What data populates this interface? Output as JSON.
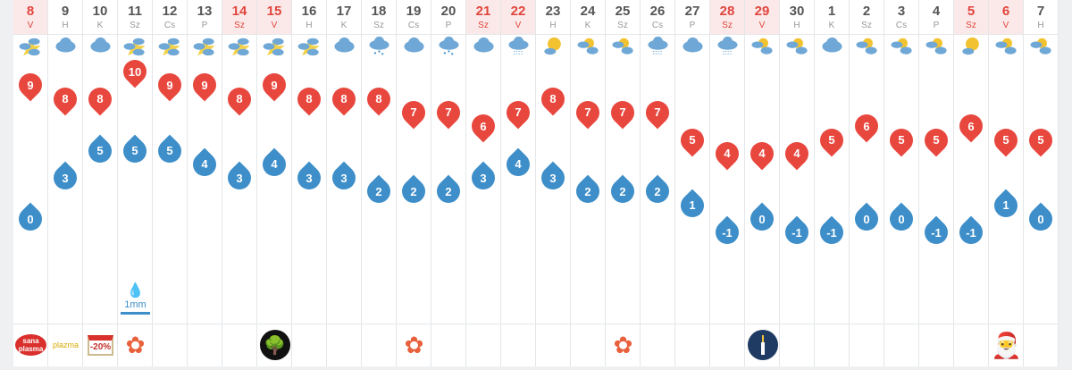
{
  "days": [
    {
      "d": "8",
      "w": "V",
      "we": true,
      "icon": "partly-cloudy",
      "max": 9,
      "min": 0
    },
    {
      "d": "9",
      "w": "H",
      "we": false,
      "icon": "cloudy",
      "max": 8,
      "min": 3
    },
    {
      "d": "10",
      "w": "K",
      "we": false,
      "icon": "cloudy",
      "max": 8,
      "min": 5
    },
    {
      "d": "11",
      "w": "Sz",
      "we": false,
      "icon": "partly-cloudy",
      "max": 10,
      "min": 5,
      "precip": "1mm"
    },
    {
      "d": "12",
      "w": "Cs",
      "we": false,
      "icon": "partly-cloudy",
      "max": 9,
      "min": 5
    },
    {
      "d": "13",
      "w": "P",
      "we": false,
      "icon": "partly-cloudy",
      "max": 9,
      "min": 4
    },
    {
      "d": "14",
      "w": "Sz",
      "we": true,
      "icon": "partly-cloudy",
      "max": 8,
      "min": 3
    },
    {
      "d": "15",
      "w": "V",
      "we": true,
      "icon": "partly-cloudy",
      "max": 9,
      "min": 4
    },
    {
      "d": "16",
      "w": "H",
      "we": false,
      "icon": "partly-cloudy",
      "max": 8,
      "min": 3
    },
    {
      "d": "17",
      "w": "K",
      "we": false,
      "icon": "cloudy",
      "max": 8,
      "min": 3
    },
    {
      "d": "18",
      "w": "Sz",
      "we": false,
      "icon": "light-rain",
      "max": 8,
      "min": 2
    },
    {
      "d": "19",
      "w": "Cs",
      "we": false,
      "icon": "cloudy",
      "max": 7,
      "min": 2
    },
    {
      "d": "20",
      "w": "P",
      "we": false,
      "icon": "light-rain",
      "max": 7,
      "min": 2
    },
    {
      "d": "21",
      "w": "Sz",
      "we": true,
      "icon": "cloudy",
      "max": 6,
      "min": 3
    },
    {
      "d": "22",
      "w": "V",
      "we": true,
      "icon": "drizzle",
      "max": 7,
      "min": 4
    },
    {
      "d": "23",
      "w": "H",
      "we": false,
      "icon": "sunny-cloud",
      "max": 8,
      "min": 3
    },
    {
      "d": "24",
      "w": "K",
      "we": false,
      "icon": "sun-clouds",
      "max": 7,
      "min": 2
    },
    {
      "d": "25",
      "w": "Sz",
      "we": false,
      "icon": "sun-clouds",
      "max": 7,
      "min": 2
    },
    {
      "d": "26",
      "w": "Cs",
      "we": false,
      "icon": "drizzle",
      "max": 7,
      "min": 2
    },
    {
      "d": "27",
      "w": "P",
      "we": false,
      "icon": "cloudy",
      "max": 5,
      "min": 1
    },
    {
      "d": "28",
      "w": "Sz",
      "we": true,
      "icon": "drizzle",
      "max": 4,
      "min": -1
    },
    {
      "d": "29",
      "w": "V",
      "we": true,
      "icon": "sun-clouds",
      "max": 4,
      "min": 0
    },
    {
      "d": "30",
      "w": "H",
      "we": false,
      "icon": "sun-clouds",
      "max": 4,
      "min": -1
    },
    {
      "d": "1",
      "w": "K",
      "we": false,
      "icon": "cloudy",
      "max": 5,
      "min": -1
    },
    {
      "d": "2",
      "w": "Sz",
      "we": false,
      "icon": "sun-clouds",
      "max": 6,
      "min": 0
    },
    {
      "d": "3",
      "w": "Cs",
      "we": false,
      "icon": "sun-clouds",
      "max": 5,
      "min": 0
    },
    {
      "d": "4",
      "w": "P",
      "we": false,
      "icon": "sun-clouds",
      "max": 5,
      "min": -1
    },
    {
      "d": "5",
      "w": "Sz",
      "we": true,
      "icon": "sunny-cloud",
      "max": 6,
      "min": -1
    },
    {
      "d": "6",
      "w": "V",
      "we": true,
      "icon": "sun-clouds",
      "max": 5,
      "min": 1
    },
    {
      "d": "7",
      "w": "H",
      "we": false,
      "icon": "sun-clouds",
      "max": 5,
      "min": 0
    }
  ],
  "events": [
    {
      "col": 0,
      "type": "sana-plasma-logo",
      "text": "sana plasma"
    },
    {
      "col": 1,
      "type": "plasma-logo",
      "text": "plazma"
    },
    {
      "col": 2,
      "type": "discount-calendar",
      "text": "-20%"
    },
    {
      "col": 3,
      "type": "flower-ornament"
    },
    {
      "col": 7,
      "type": "tree-memorial"
    },
    {
      "col": 11,
      "type": "flower-ornament"
    },
    {
      "col": 17,
      "type": "flower-ornament"
    },
    {
      "col": 21,
      "type": "candle"
    },
    {
      "col": 28,
      "type": "santa-claus"
    }
  ],
  "colors": {
    "max": "#e8473e",
    "min": "#3d8ec9",
    "weekend": "#e0443c"
  }
}
